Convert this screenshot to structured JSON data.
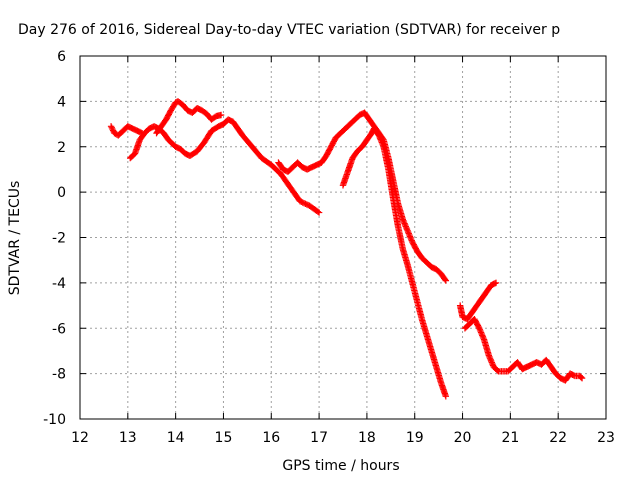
{
  "chart_data": {
    "type": "scatter",
    "title": "Day 276 of 2016, Sidereal Day-to-day VTEC variation (SDTVAR) for receiver p",
    "xlabel": "GPS time / hours",
    "ylabel": "SDTVAR / TECUs",
    "xlim": [
      12,
      23
    ],
    "ylim": [
      -10,
      6
    ],
    "xticks": [
      "12",
      "13",
      "14",
      "15",
      "16",
      "17",
      "18",
      "19",
      "20",
      "21",
      "22",
      "23"
    ],
    "yticks": [
      "-10",
      "-8",
      "-6",
      "-4",
      "-2",
      "0",
      "2",
      "4",
      "6"
    ],
    "grid": true,
    "marker": "plus",
    "color": "#ff0000",
    "segments": [
      {
        "x": [
          12.65,
          12.72,
          12.8,
          12.9,
          13.0,
          13.05,
          13.1,
          13.2,
          13.3
        ],
        "y": [
          2.9,
          2.6,
          2.5,
          2.7,
          2.9,
          2.85,
          2.8,
          2.7,
          2.6
        ]
      },
      {
        "x": [
          13.05,
          13.15,
          13.25,
          13.35,
          13.45,
          13.55,
          13.65,
          13.75,
          13.85,
          14.0,
          14.1,
          14.2,
          14.3,
          14.45,
          14.6,
          14.75,
          14.9,
          15.0,
          15.1,
          15.2,
          15.3,
          15.4,
          15.6,
          15.8,
          16.0,
          16.2,
          16.4,
          16.6,
          16.8,
          17.0
        ],
        "y": [
          1.5,
          1.7,
          2.3,
          2.6,
          2.8,
          2.9,
          2.8,
          2.6,
          2.3,
          2.0,
          1.9,
          1.7,
          1.6,
          1.8,
          2.2,
          2.7,
          2.9,
          3.0,
          3.2,
          3.1,
          2.8,
          2.5,
          2.0,
          1.5,
          1.2,
          0.8,
          0.2,
          -0.4,
          -0.6,
          -0.9
        ]
      },
      {
        "x": [
          13.6,
          13.7,
          13.8,
          13.9,
          14.0,
          14.05,
          14.15,
          14.25,
          14.35,
          14.45,
          14.55,
          14.65,
          14.75,
          14.85,
          14.95
        ],
        "y": [
          2.6,
          2.9,
          3.2,
          3.6,
          3.95,
          4.0,
          3.85,
          3.6,
          3.5,
          3.7,
          3.6,
          3.45,
          3.2,
          3.35,
          3.4
        ]
      },
      {
        "x": [
          16.15,
          16.25,
          16.35,
          16.45,
          16.55,
          16.65,
          16.75,
          16.85,
          16.95,
          17.05,
          17.15,
          17.25,
          17.35,
          17.45,
          17.55,
          17.65,
          17.75,
          17.85,
          17.95,
          18.05,
          18.15,
          18.25,
          18.35,
          18.45,
          18.55,
          18.65,
          18.75,
          18.85,
          18.95,
          19.05,
          19.15,
          19.25,
          19.35,
          19.45,
          19.55,
          19.65
        ],
        "y": [
          1.3,
          1.0,
          0.9,
          1.1,
          1.3,
          1.1,
          1.0,
          1.1,
          1.2,
          1.3,
          1.6,
          2.0,
          2.4,
          2.6,
          2.8,
          3.0,
          3.2,
          3.4,
          3.5,
          3.2,
          2.9,
          2.6,
          2.3,
          1.5,
          0.5,
          -0.5,
          -1.2,
          -1.7,
          -2.2,
          -2.6,
          -2.9,
          -3.1,
          -3.3,
          -3.4,
          -3.6,
          -3.9
        ]
      },
      {
        "x": [
          17.5,
          17.6,
          17.7,
          17.8,
          17.9,
          18.0,
          18.1,
          18.15,
          18.25,
          18.35,
          18.45,
          18.55,
          18.65,
          18.75,
          18.85,
          18.95,
          19.05,
          19.15,
          19.25,
          19.35,
          19.45,
          19.55,
          19.65
        ],
        "y": [
          0.3,
          0.9,
          1.5,
          1.8,
          2.0,
          2.3,
          2.6,
          2.8,
          2.5,
          2.0,
          1.0,
          -0.3,
          -1.5,
          -2.5,
          -3.2,
          -4.0,
          -4.8,
          -5.6,
          -6.3,
          -7.0,
          -7.7,
          -8.4,
          -9.0
        ]
      },
      {
        "x": [
          19.95,
          20.0,
          20.1,
          20.2,
          20.3,
          20.4,
          20.5,
          20.6,
          20.7
        ],
        "y": [
          -5.0,
          -5.5,
          -5.6,
          -5.3,
          -5.0,
          -4.7,
          -4.4,
          -4.1,
          -4.0
        ]
      },
      {
        "x": [
          20.05,
          20.15,
          20.25,
          20.35,
          20.45,
          20.55,
          20.65,
          20.75,
          20.85,
          20.95,
          21.05,
          21.15,
          21.25,
          21.35,
          21.45,
          21.55,
          21.65,
          21.75,
          21.85,
          21.95,
          22.05,
          22.15,
          22.25,
          22.35,
          22.45,
          22.5
        ],
        "y": [
          -6.0,
          -5.8,
          -5.6,
          -6.0,
          -6.5,
          -7.2,
          -7.7,
          -7.9,
          -7.9,
          -7.9,
          -7.7,
          -7.5,
          -7.8,
          -7.7,
          -7.6,
          -7.5,
          -7.6,
          -7.4,
          -7.7,
          -8.0,
          -8.2,
          -8.3,
          -8.0,
          -8.1,
          -8.1,
          -8.2
        ]
      }
    ]
  }
}
